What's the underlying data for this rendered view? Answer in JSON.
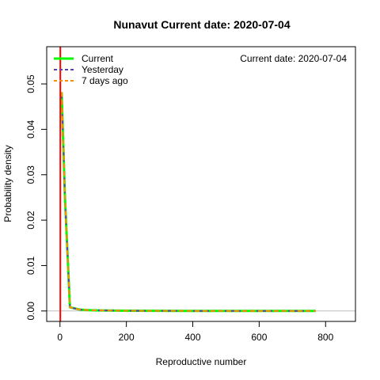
{
  "chart_data": {
    "type": "line",
    "title": "Nunavut   Current date:  2020-07-04",
    "annotation": "Current date:  2020-07-04",
    "xlabel": "Reproductive number",
    "ylabel": "Probability density",
    "xlim": [
      -40,
      890
    ],
    "ylim": [
      -0.0023,
      0.0582
    ],
    "xticks": [
      0,
      200,
      400,
      600,
      800
    ],
    "xtick_labels": [
      "0",
      "200",
      "400",
      "600",
      "800"
    ],
    "yticks": [
      0,
      0.01,
      0.02,
      0.03,
      0.04,
      0.05
    ],
    "ytick_labels": [
      "0.00",
      "0.01",
      "0.02",
      "0.03",
      "0.04",
      "0.05"
    ],
    "grid": false,
    "legend_position": "top-left",
    "reference_line": {
      "x": 1,
      "color": "#ff0000"
    },
    "baseline": {
      "y": 0,
      "color": "#bebebe"
    },
    "x": [
      5,
      15,
      30,
      60,
      80,
      100,
      150,
      200,
      300,
      400,
      500,
      600,
      700,
      770
    ],
    "series": [
      {
        "name": "Current",
        "color": "#00ff00",
        "dash": "solid",
        "width": 3,
        "values": [
          0.0482,
          0.025,
          0.0008,
          0.0003,
          0.0002,
          0.00015,
          0.0001,
          5e-05,
          3e-05,
          2e-05,
          1e-05,
          1e-05,
          5e-06,
          0
        ]
      },
      {
        "name": "Yesterday",
        "color": "#5f3fb0",
        "dash": "dashed",
        "width": 2,
        "values": [
          0.0482,
          0.025,
          0.0008,
          0.0003,
          0.0002,
          0.00015,
          0.0001,
          5e-05,
          3e-05,
          2e-05,
          1e-05,
          1e-05,
          5e-06,
          0
        ]
      },
      {
        "name": "7 days ago",
        "color": "#ff8c00",
        "dash": "dashed",
        "width": 2,
        "values": [
          0.0482,
          0.025,
          0.0008,
          0.0003,
          0.0002,
          0.00015,
          0.0001,
          5e-05,
          3e-05,
          2e-05,
          1e-05,
          1e-05,
          5e-06,
          0
        ]
      }
    ]
  }
}
